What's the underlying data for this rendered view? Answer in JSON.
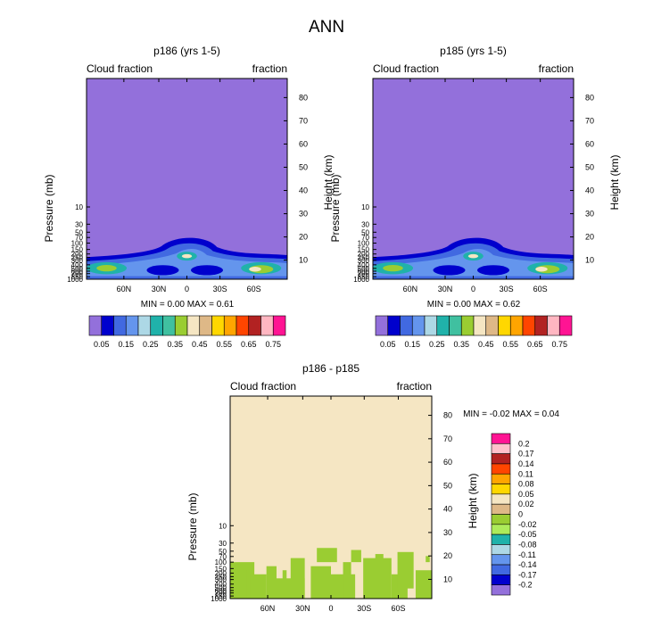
{
  "figure": {
    "title": "ANN"
  },
  "colors": {
    "background_low": "#9370DB",
    "difference_bg": "#F5E6C3",
    "difference_fill": "#9ACD32",
    "frame": "#000000"
  },
  "chart_data": [
    {
      "type": "heatmap",
      "title": "p186 (yrs 1-5)",
      "left_string": "Cloud fraction",
      "right_string": "fraction",
      "ylabel": "Pressure (mb)",
      "y2label": "Height (km)",
      "x_ticks": [
        "60N",
        "30N",
        "0",
        "30S",
        "60S"
      ],
      "y_ticks": [
        "10",
        "30",
        "50",
        "70",
        "100",
        "150",
        "200",
        "250",
        "300",
        "400",
        "500",
        "600",
        "700",
        "850",
        "1000"
      ],
      "y2_ticks": [
        "10",
        "20",
        "30",
        "40",
        "50",
        "60",
        "70",
        "80"
      ],
      "min": "0.00",
      "max": "0.61",
      "stats_text": "MIN =   0.00   MAX =   0.61",
      "colorbar_labels": [
        "0.05",
        "0.15",
        "0.25",
        "0.35",
        "0.45",
        "0.55",
        "0.65",
        "0.75"
      ],
      "levels": [
        0.05,
        0.1,
        0.15,
        0.2,
        0.25,
        0.3,
        0.35,
        0.4,
        0.45,
        0.5,
        0.55,
        0.6,
        0.65,
        0.7,
        0.75
      ],
      "colormap": [
        "#9370DB",
        "#0000CD",
        "#4169E1",
        "#6495ED",
        "#ADD8E6",
        "#20B2AA",
        "#40C0A0",
        "#9ACD32",
        "#F5E6C3",
        "#DEB887",
        "#FFD700",
        "#FFA500",
        "#FF4500",
        "#B22222",
        "#FFB6C1",
        "#FF1493"
      ]
    },
    {
      "type": "heatmap",
      "title": "p185 (yrs 1-5)",
      "left_string": "Cloud fraction",
      "right_string": "fraction",
      "ylabel": "Pressure (mb)",
      "y2label": "Height (km)",
      "x_ticks": [
        "60N",
        "30N",
        "0",
        "30S",
        "60S"
      ],
      "y_ticks": [
        "10",
        "30",
        "50",
        "70",
        "100",
        "150",
        "200",
        "250",
        "300",
        "400",
        "500",
        "600",
        "700",
        "850",
        "1000"
      ],
      "y2_ticks": [
        "10",
        "20",
        "30",
        "40",
        "50",
        "60",
        "70",
        "80"
      ],
      "min": "0.00",
      "max": "0.62",
      "stats_text": "MIN =   0.00   MAX =   0.62",
      "colorbar_labels": [
        "0.05",
        "0.15",
        "0.25",
        "0.35",
        "0.45",
        "0.55",
        "0.65",
        "0.75"
      ],
      "levels": [
        0.05,
        0.1,
        0.15,
        0.2,
        0.25,
        0.3,
        0.35,
        0.4,
        0.45,
        0.5,
        0.55,
        0.6,
        0.65,
        0.7,
        0.75
      ],
      "colormap": [
        "#9370DB",
        "#0000CD",
        "#4169E1",
        "#6495ED",
        "#ADD8E6",
        "#20B2AA",
        "#40C0A0",
        "#9ACD32",
        "#F5E6C3",
        "#DEB887",
        "#FFD700",
        "#FFA500",
        "#FF4500",
        "#B22222",
        "#FFB6C1",
        "#FF1493"
      ]
    },
    {
      "type": "heatmap",
      "title": "p186 - p185",
      "left_string": "Cloud fraction",
      "right_string": "fraction",
      "ylabel": "Pressure (mb)",
      "y2label": "Height (km)",
      "x_ticks": [
        "60N",
        "30N",
        "0",
        "30S",
        "60S"
      ],
      "y_ticks": [
        "10",
        "30",
        "50",
        "70",
        "100",
        "150",
        "200",
        "250",
        "300",
        "400",
        "500",
        "600",
        "700",
        "850",
        "1000"
      ],
      "y2_ticks": [
        "10",
        "20",
        "30",
        "40",
        "50",
        "60",
        "70",
        "80"
      ],
      "min": "-0.02",
      "max": "0.04",
      "stats_text": "MIN =  -0.02   MAX =   0.04",
      "colorbar_labels": [
        "0.2",
        "0.17",
        "0.14",
        "0.11",
        "0.08",
        "0.05",
        "0.02",
        "0",
        "-0.02",
        "-0.05",
        "-0.08",
        "-0.11",
        "-0.14",
        "-0.17",
        "-0.2"
      ],
      "colormap": [
        "#FF1493",
        "#FFC0CB",
        "#B22222",
        "#FF4500",
        "#FFA500",
        "#FFD700",
        "#F5E6C3",
        "#DEB887",
        "#9ACD32",
        "#ADEB5A",
        "#20B2AA",
        "#ADD8E6",
        "#6495ED",
        "#4169E1",
        "#0000CD",
        "#9370DB"
      ]
    }
  ]
}
